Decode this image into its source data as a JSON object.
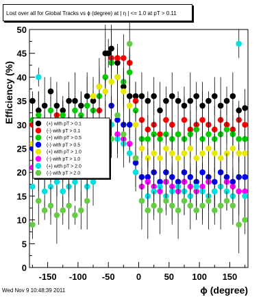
{
  "page_title": "Lost over all for Global Tracks vs ϕ (degree) at | η | <= 1.0 at pT > 0.11",
  "footer": "Wed Nov  9 10:48:39 2011",
  "chart_data": {
    "type": "scatter",
    "title": "Lost over all for Global Tracks vs ϕ (degree) at | η | <= 1.0 at pT > 0.11",
    "xlabel": "ϕ (degree)",
    "ylabel": "Efficiency (%)",
    "xlim": [
      -180,
      180
    ],
    "ylim": [
      0,
      50
    ],
    "xticks": [
      -150,
      -100,
      -50,
      0,
      50,
      100,
      150
    ],
    "yticks": [
      0,
      5,
      10,
      15,
      20,
      25,
      30,
      35,
      40,
      45,
      50
    ],
    "legend_position": "center-left",
    "grid": false,
    "series": [
      {
        "name": "(+) with pT > 0.1",
        "color": "#000000",
        "x": [
          -175,
          -165,
          -155,
          -145,
          -135,
          -125,
          -115,
          -105,
          -95,
          -85,
          -75,
          -65,
          -55,
          -50,
          -45,
          -35,
          -25,
          -15,
          -5,
          5,
          15,
          25,
          35,
          45,
          55,
          65,
          75,
          85,
          95,
          105,
          115,
          125,
          135,
          145,
          155,
          165,
          175
        ],
        "y": [
          35,
          33,
          34,
          37,
          34,
          33,
          35,
          35,
          34,
          36,
          35,
          38,
          45,
          45,
          46,
          43,
          38,
          36,
          36,
          36,
          35,
          36,
          33,
          35,
          36,
          35,
          34,
          35,
          36,
          34,
          35,
          36,
          34,
          35,
          36,
          33,
          33.5
        ]
      },
      {
        "name": "(-) with pT > 0.1",
        "color": "#ff0000",
        "x": [
          -175,
          -165,
          -155,
          -145,
          -135,
          -125,
          -115,
          -105,
          -95,
          -85,
          -75,
          -65,
          -55,
          -45,
          -35,
          -25,
          -15,
          -5,
          5,
          15,
          25,
          35,
          45,
          55,
          65,
          75,
          85,
          95,
          105,
          115,
          125,
          135,
          145,
          155,
          165,
          175
        ],
        "y": [
          30,
          31,
          29,
          30,
          32,
          31,
          30,
          29,
          31,
          30,
          29,
          33,
          40,
          44,
          44,
          44,
          43,
          35,
          31,
          29,
          30,
          28,
          31,
          30,
          28,
          31,
          29,
          30,
          31,
          30,
          29,
          31,
          30,
          29,
          31,
          30
        ]
      },
      {
        "name": "(+) with pT > 0.5",
        "color": "#00cc00",
        "x": [
          -175,
          -165,
          -155,
          -145,
          -135,
          -125,
          -115,
          -105,
          -95,
          -85,
          -75,
          -65,
          -55,
          -45,
          -35,
          -25,
          -15,
          -5,
          5,
          15,
          25,
          35,
          45,
          55,
          65,
          75,
          85,
          95,
          105,
          115,
          125,
          135,
          145,
          155,
          165,
          175
        ],
        "y": [
          31,
          32,
          30,
          33,
          31,
          32,
          31,
          33,
          32,
          34,
          33,
          36,
          40,
          43,
          40,
          39,
          41,
          33,
          27,
          27,
          28,
          27,
          28,
          27,
          28,
          27,
          28,
          29,
          27,
          28,
          27,
          28,
          29,
          28,
          27,
          27
        ]
      },
      {
        "name": "(-) with pT > 0.5",
        "color": "#0000ff",
        "x": [
          -175,
          -165,
          -155,
          -145,
          -135,
          -125,
          -115,
          -105,
          -95,
          -85,
          -75,
          -65,
          -55,
          -45,
          -35,
          -25,
          -15,
          -5,
          5,
          15,
          25,
          35,
          45,
          55,
          65,
          75,
          85,
          95,
          105,
          115,
          125,
          135,
          145,
          155,
          165,
          175
        ],
        "y": [
          25,
          24,
          26,
          25,
          26,
          24,
          25,
          26,
          25,
          24,
          26,
          27,
          30,
          34,
          31,
          30,
          30,
          22,
          19,
          19,
          20,
          18,
          20,
          19,
          18,
          20,
          19,
          18,
          20,
          19,
          18,
          20,
          19,
          18,
          19,
          19
        ]
      },
      {
        "name": "(+) with pT > 1.0",
        "color": "#e8e800",
        "x": [
          -175,
          -165,
          -155,
          -145,
          -135,
          -125,
          -115,
          -105,
          -95,
          -85,
          -75,
          -65,
          -55,
          -45,
          -35,
          -25,
          -15,
          -5,
          5,
          15,
          25,
          35,
          45,
          55,
          65,
          75,
          85,
          95,
          105,
          115,
          125,
          135,
          145,
          155,
          165,
          175
        ],
        "y": [
          26,
          25,
          27,
          26,
          25,
          27,
          26,
          25,
          27,
          26,
          36,
          38,
          37,
          39,
          40,
          37,
          34,
          30,
          25,
          23,
          24,
          23,
          25,
          24,
          23,
          24,
          25,
          23,
          24,
          25,
          24,
          23,
          24,
          25,
          24,
          24
        ]
      },
      {
        "name": "(-) with pT > 1.0",
        "color": "#ff00ff",
        "x": [
          -175,
          -165,
          -155,
          -145,
          -135,
          -125,
          -115,
          -105,
          -95,
          -85,
          -75,
          -65,
          -55,
          -45,
          -35,
          -25,
          -15,
          -5,
          5,
          15,
          25,
          35,
          45,
          55,
          65,
          75,
          85,
          95,
          105,
          115,
          125,
          135,
          145,
          155,
          165,
          175
        ],
        "y": [
          21,
          20,
          22,
          21,
          20,
          22,
          21,
          20,
          22,
          21,
          24,
          26,
          28,
          30,
          28,
          27,
          26,
          23,
          17,
          18,
          17,
          16,
          18,
          17,
          16,
          18,
          17,
          16,
          17,
          18,
          16,
          17,
          18,
          17,
          16,
          16
        ]
      },
      {
        "name": "(+) with pT > 2.0",
        "color": "#00e0e0",
        "x": [
          -175,
          -165,
          -155,
          -145,
          -135,
          -125,
          -115,
          -105,
          -95,
          -85,
          -75,
          -65,
          -55,
          -45,
          -35,
          -25,
          -15,
          -5,
          5,
          15,
          25,
          35,
          45,
          55,
          65,
          75,
          85,
          95,
          105,
          115,
          125,
          135,
          145,
          155,
          165,
          175
        ],
        "y": [
          17,
          40,
          16,
          17,
          18,
          16,
          17,
          18,
          19,
          17,
          18,
          22,
          25,
          30,
          27,
          26,
          24,
          20,
          14,
          15,
          16,
          17,
          15,
          16,
          17,
          16,
          15,
          17,
          16,
          15,
          16,
          17,
          16,
          15,
          47,
          15
        ]
      },
      {
        "name": "(-) with pT > 2.0",
        "color": "#66cc44",
        "x": [
          -175,
          -165,
          -155,
          -145,
          -135,
          -125,
          -115,
          -105,
          -95,
          -85,
          -75,
          -65,
          -55,
          -45,
          -35,
          -25,
          -15,
          -5,
          5,
          15,
          25,
          35,
          45,
          55,
          65,
          75,
          85,
          95,
          105,
          115,
          125,
          135,
          145,
          155,
          165,
          175
        ],
        "y": [
          9,
          14,
          12,
          13,
          11,
          12,
          13,
          11,
          12,
          14,
          25,
          24,
          28,
          27,
          32,
          28,
          47,
          23,
          14,
          12,
          13,
          12,
          14,
          13,
          12,
          14,
          13,
          12,
          13,
          14,
          12,
          13,
          14,
          13,
          9,
          10
        ]
      }
    ]
  }
}
